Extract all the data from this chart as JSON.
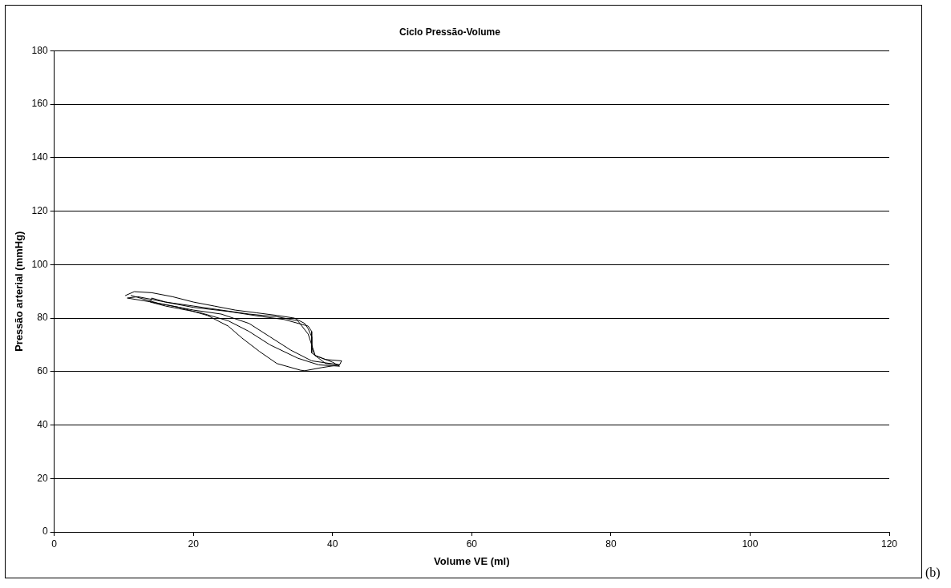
{
  "chart_data": {
    "type": "line",
    "title": "Ciclo Pressão-Volume",
    "xlabel": "Volume VE (ml)",
    "ylabel": "Pressão arterial (mmHg)",
    "annotations": [
      "(b)"
    ],
    "xlim": [
      0,
      120
    ],
    "xticks": [
      0,
      20,
      40,
      60,
      80,
      100,
      120
    ],
    "ylim": [
      0,
      180
    ],
    "yticks": [
      0,
      20,
      40,
      60,
      80,
      100,
      120,
      140,
      160,
      180
    ],
    "grid": "y",
    "legend": false,
    "marker": "none",
    "line_style": "solid",
    "series": [
      {
        "color": "#000000",
        "x": [
          10.2,
          11.5,
          14,
          17,
          20,
          23,
          26,
          29,
          32,
          34.5,
          36,
          36.5,
          37,
          37,
          37.5,
          39,
          41.3,
          41,
          38.5,
          36,
          35.4,
          32,
          29.5,
          27,
          25,
          22,
          18,
          14,
          10.5,
          12,
          16,
          20,
          24,
          28,
          32,
          35,
          36.5,
          37,
          37.5,
          40,
          41,
          38,
          35,
          31,
          28,
          25,
          21,
          16,
          13.8,
          14,
          16,
          20,
          25,
          30,
          33,
          36.5,
          37,
          37,
          39,
          41,
          37,
          34,
          31,
          28,
          24,
          20,
          15,
          11
        ],
        "values": [
          88.4,
          89.9,
          89.5,
          88,
          86,
          84.5,
          83,
          82,
          81,
          80,
          78,
          76,
          73,
          69,
          66,
          64.5,
          64,
          62.5,
          61.5,
          60.3,
          60.5,
          63,
          67.5,
          72.5,
          77,
          81,
          84,
          86,
          87.5,
          88,
          86,
          84.5,
          83,
          81.5,
          80.5,
          79,
          74,
          70,
          66,
          63.5,
          62,
          62.5,
          65,
          70,
          75,
          79,
          82,
          84.5,
          86,
          87.5,
          86,
          84,
          82.5,
          80.5,
          79.5,
          77,
          75,
          67,
          63,
          62.5,
          64,
          68,
          73,
          78,
          81.5,
          83,
          85.5,
          88.5
        ]
      }
    ]
  }
}
